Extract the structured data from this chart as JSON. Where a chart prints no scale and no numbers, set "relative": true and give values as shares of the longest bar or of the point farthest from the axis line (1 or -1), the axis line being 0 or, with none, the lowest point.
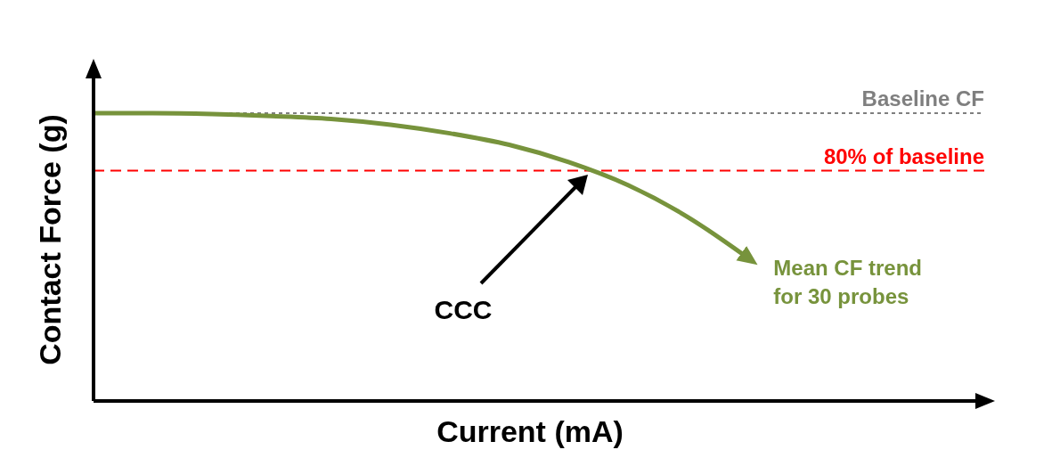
{
  "chart_data": {
    "type": "line",
    "relative": true,
    "xlabel": "Current (mA)",
    "ylabel": "Contact Force (g)",
    "categories": [
      null,
      null,
      null,
      null,
      null,
      null,
      null,
      null,
      null,
      null,
      null,
      null,
      null,
      null,
      null,
      null
    ],
    "series": [
      {
        "name": "Mean CF trend\nfor 30 probes",
        "color": "#77933c",
        "values": [
          1.0,
          1.0,
          0.997,
          0.99,
          0.98,
          0.96,
          0.93,
          0.89,
          0.83,
          0.75,
          0.64,
          0.5,
          null,
          null,
          null,
          null
        ]
      }
    ],
    "ref_lines": [
      {
        "axis": "y",
        "value": 1.0,
        "label": "Baseline CF",
        "color": "#7f7f7f",
        "line_style": "dotted"
      },
      {
        "axis": "y",
        "value": 0.8,
        "label": "80% of baseline",
        "color": "#ff0000",
        "line_style": "dashed"
      }
    ],
    "annotations": [
      "CCC"
    ],
    "marker": "none",
    "line_style": "solid"
  }
}
